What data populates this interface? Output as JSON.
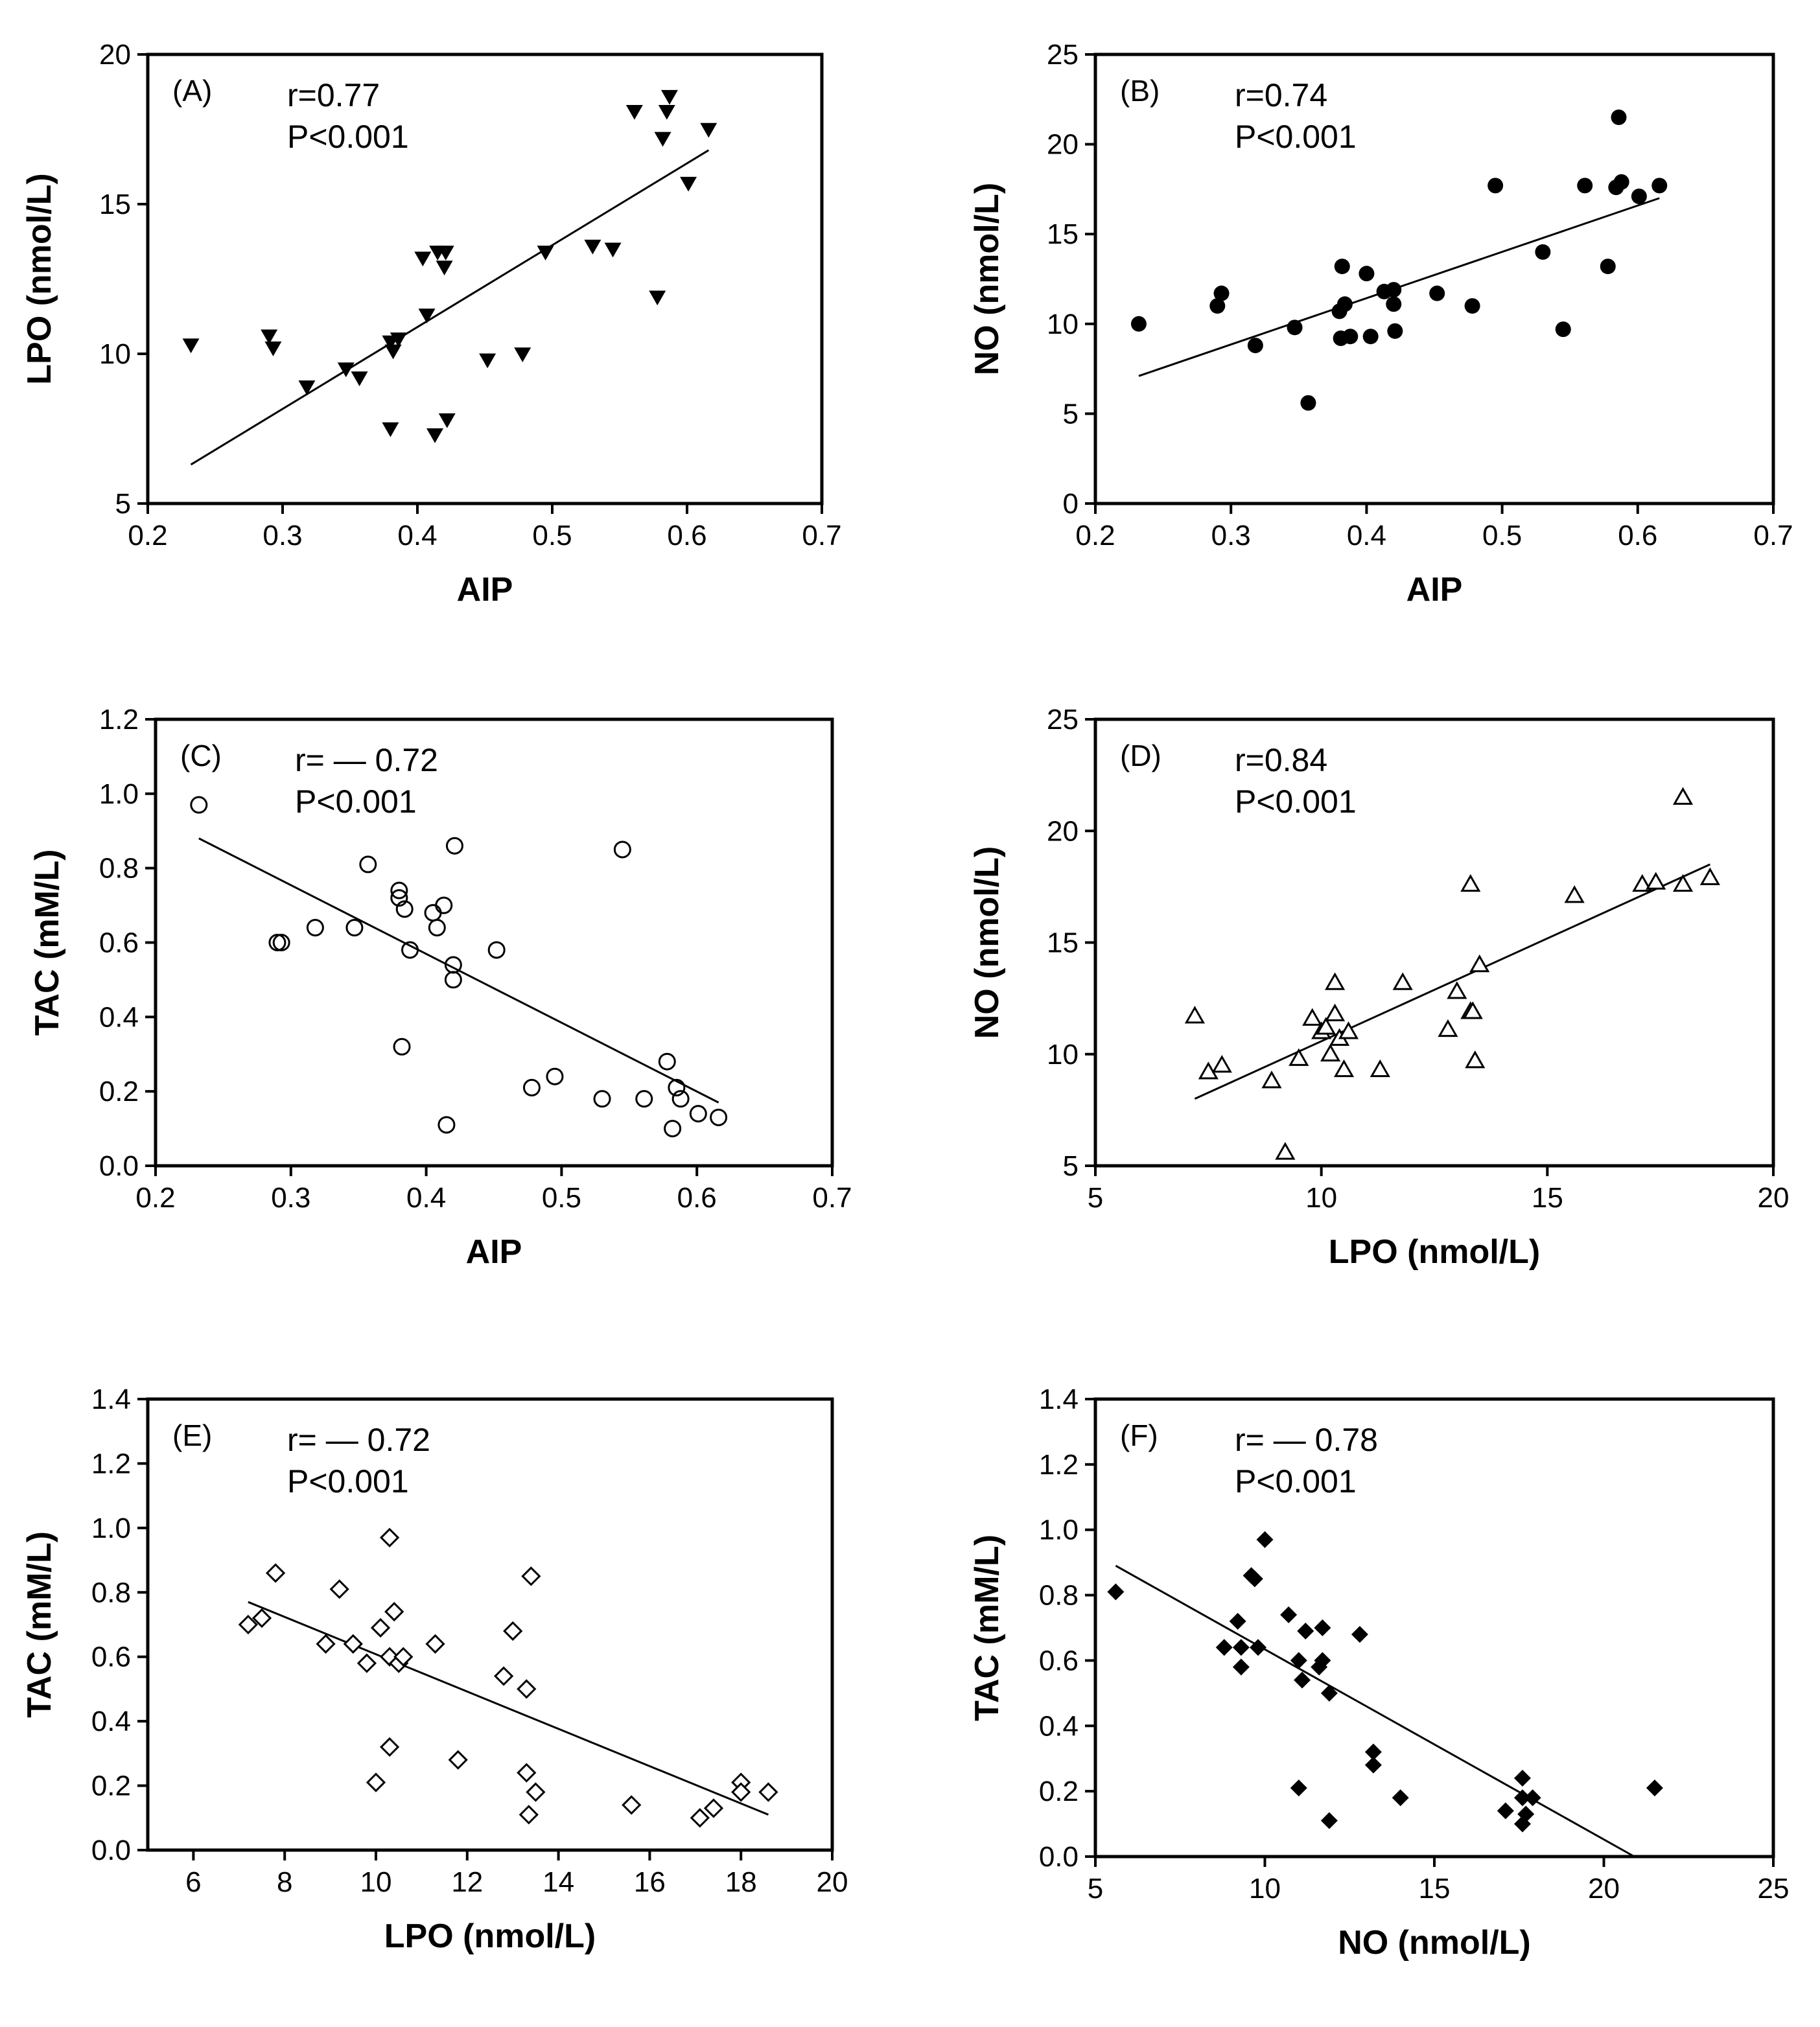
{
  "chart_data": [
    {
      "id": "A",
      "type": "scatter",
      "panel_label": "(A)",
      "annotations": [
        "r=0.77",
        "P<0.001"
      ],
      "xlabel": "AIP",
      "ylabel": "LPO (nmol/L)",
      "xlim": [
        0.2,
        0.7
      ],
      "ylim": [
        5,
        20
      ],
      "xticks": [
        0.2,
        0.3,
        0.4,
        0.5,
        0.6,
        0.7
      ],
      "xtick_labels": [
        "0.2",
        "0.3",
        "0.4",
        "0.5",
        "0.6",
        "0.7"
      ],
      "yticks": [
        5,
        10,
        15,
        20
      ],
      "ytick_labels": [
        "5",
        "10",
        "15",
        "20"
      ],
      "marker": "triangle-down-filled",
      "points": [
        [
          0.232,
          10.3
        ],
        [
          0.29,
          10.6
        ],
        [
          0.293,
          10.2
        ],
        [
          0.318,
          8.9
        ],
        [
          0.347,
          9.5
        ],
        [
          0.357,
          9.2
        ],
        [
          0.38,
          7.5
        ],
        [
          0.38,
          10.4
        ],
        [
          0.382,
          10.1
        ],
        [
          0.386,
          10.5
        ],
        [
          0.404,
          13.2
        ],
        [
          0.407,
          11.3
        ],
        [
          0.413,
          7.3
        ],
        [
          0.415,
          13.4
        ],
        [
          0.421,
          13.4
        ],
        [
          0.42,
          12.9
        ],
        [
          0.422,
          7.8
        ],
        [
          0.452,
          9.8
        ],
        [
          0.478,
          10.0
        ],
        [
          0.495,
          13.4
        ],
        [
          0.53,
          13.6
        ],
        [
          0.545,
          13.5
        ],
        [
          0.561,
          18.1
        ],
        [
          0.578,
          11.9
        ],
        [
          0.582,
          17.2
        ],
        [
          0.585,
          18.1
        ],
        [
          0.587,
          18.6
        ],
        [
          0.601,
          15.7
        ],
        [
          0.616,
          17.5
        ]
      ],
      "fit_line": [
        [
          0.232,
          6.3
        ],
        [
          0.616,
          16.8
        ]
      ]
    },
    {
      "id": "B",
      "type": "scatter",
      "panel_label": "(B)",
      "annotations": [
        "r=0.74",
        "P<0.001"
      ],
      "xlabel": "AIP",
      "ylabel": "NO (nmol/L)",
      "xlim": [
        0.2,
        0.7
      ],
      "ylim": [
        0,
        25
      ],
      "xticks": [
        0.2,
        0.3,
        0.4,
        0.5,
        0.6,
        0.7
      ],
      "xtick_labels": [
        "0.2",
        "0.3",
        "0.4",
        "0.5",
        "0.6",
        "0.7"
      ],
      "yticks": [
        0,
        5,
        10,
        15,
        20,
        25
      ],
      "ytick_labels": [
        "0",
        "5",
        "10",
        "15",
        "20",
        "25"
      ],
      "marker": "circle-filled",
      "points": [
        [
          0.232,
          10.0
        ],
        [
          0.29,
          11.0
        ],
        [
          0.293,
          11.7
        ],
        [
          0.318,
          8.8
        ],
        [
          0.347,
          9.8
        ],
        [
          0.357,
          5.6
        ],
        [
          0.38,
          10.7
        ],
        [
          0.381,
          9.2
        ],
        [
          0.382,
          13.2
        ],
        [
          0.384,
          11.1
        ],
        [
          0.388,
          9.3
        ],
        [
          0.4,
          12.8
        ],
        [
          0.403,
          9.3
        ],
        [
          0.413,
          11.8
        ],
        [
          0.42,
          11.9
        ],
        [
          0.42,
          11.1
        ],
        [
          0.421,
          9.6
        ],
        [
          0.452,
          11.7
        ],
        [
          0.478,
          11.0
        ],
        [
          0.495,
          17.7
        ],
        [
          0.53,
          14.0
        ],
        [
          0.545,
          9.7
        ],
        [
          0.561,
          17.7
        ],
        [
          0.578,
          13.2
        ],
        [
          0.584,
          17.6
        ],
        [
          0.586,
          21.5
        ],
        [
          0.588,
          17.9
        ],
        [
          0.601,
          17.1
        ],
        [
          0.616,
          17.7
        ]
      ],
      "fit_line": [
        [
          0.232,
          7.1
        ],
        [
          0.616,
          17.0
        ]
      ]
    },
    {
      "id": "C",
      "type": "scatter",
      "panel_label": "(C)",
      "annotations": [
        "r= — 0.72",
        "P<0.001"
      ],
      "xlabel": "AIP",
      "ylabel": "TAC (mM/L)",
      "xlim": [
        0.2,
        0.7
      ],
      "ylim": [
        0.0,
        1.2
      ],
      "xticks": [
        0.2,
        0.3,
        0.4,
        0.5,
        0.6,
        0.7
      ],
      "xtick_labels": [
        "0.2",
        "0.3",
        "0.4",
        "0.5",
        "0.6",
        "0.7"
      ],
      "yticks": [
        0.0,
        0.2,
        0.4,
        0.6,
        0.8,
        1.0,
        1.2
      ],
      "ytick_labels": [
        "0.0",
        "0.2",
        "0.4",
        "0.6",
        "0.8",
        "1.0",
        "1.2"
      ],
      "marker": "circle-open",
      "points": [
        [
          0.232,
          0.97
        ],
        [
          0.29,
          0.6
        ],
        [
          0.293,
          0.6
        ],
        [
          0.318,
          0.64
        ],
        [
          0.347,
          0.64
        ],
        [
          0.357,
          0.81
        ],
        [
          0.38,
          0.74
        ],
        [
          0.38,
          0.72
        ],
        [
          0.382,
          0.32
        ],
        [
          0.384,
          0.69
        ],
        [
          0.388,
          0.58
        ],
        [
          0.405,
          0.68
        ],
        [
          0.408,
          0.64
        ],
        [
          0.413,
          0.7
        ],
        [
          0.415,
          0.11
        ],
        [
          0.42,
          0.54
        ],
        [
          0.42,
          0.5
        ],
        [
          0.421,
          0.86
        ],
        [
          0.452,
          0.58
        ],
        [
          0.478,
          0.21
        ],
        [
          0.495,
          0.24
        ],
        [
          0.53,
          0.18
        ],
        [
          0.545,
          0.85
        ],
        [
          0.561,
          0.18
        ],
        [
          0.578,
          0.28
        ],
        [
          0.582,
          0.1
        ],
        [
          0.585,
          0.21
        ],
        [
          0.588,
          0.18
        ],
        [
          0.601,
          0.14
        ],
        [
          0.616,
          0.13
        ]
      ],
      "fit_line": [
        [
          0.232,
          0.88
        ],
        [
          0.616,
          0.17
        ]
      ]
    },
    {
      "id": "D",
      "type": "scatter",
      "panel_label": "(D)",
      "annotations": [
        "r=0.84",
        "P<0.001"
      ],
      "xlabel": "LPO (nmol/L)",
      "ylabel": "NO (nmol/L)",
      "xlim": [
        5,
        20
      ],
      "ylim": [
        5,
        25
      ],
      "xticks": [
        5,
        10,
        15,
        20
      ],
      "xtick_labels": [
        "5",
        "10",
        "15",
        "20"
      ],
      "yticks": [
        5,
        10,
        15,
        20,
        25
      ],
      "ytick_labels": [
        "5",
        "10",
        "15",
        "20",
        "25"
      ],
      "marker": "triangle-up-open",
      "points": [
        [
          7.2,
          11.7
        ],
        [
          7.5,
          9.2
        ],
        [
          7.8,
          9.5
        ],
        [
          8.9,
          8.8
        ],
        [
          9.2,
          5.6
        ],
        [
          9.5,
          9.8
        ],
        [
          9.8,
          11.6
        ],
        [
          10.0,
          11.0
        ],
        [
          10.1,
          11.2
        ],
        [
          10.2,
          10.0
        ],
        [
          10.3,
          13.2
        ],
        [
          10.3,
          11.8
        ],
        [
          10.4,
          10.7
        ],
        [
          10.5,
          9.3
        ],
        [
          10.6,
          11.0
        ],
        [
          11.3,
          9.3
        ],
        [
          11.8,
          13.2
        ],
        [
          12.8,
          11.1
        ],
        [
          13.0,
          12.8
        ],
        [
          13.3,
          11.9
        ],
        [
          13.3,
          17.6
        ],
        [
          13.35,
          11.9
        ],
        [
          13.4,
          9.7
        ],
        [
          13.5,
          14.0
        ],
        [
          15.6,
          17.1
        ],
        [
          17.1,
          17.6
        ],
        [
          17.4,
          17.7
        ],
        [
          18.0,
          17.6
        ],
        [
          18.0,
          21.5
        ],
        [
          18.6,
          17.9
        ]
      ],
      "fit_line": [
        [
          7.2,
          8.0
        ],
        [
          18.6,
          18.5
        ]
      ]
    },
    {
      "id": "E",
      "type": "scatter",
      "panel_label": "(E)",
      "annotations": [
        "r= — 0.72",
        "P<0.001"
      ],
      "xlabel": "LPO (nmol/L)",
      "ylabel": "TAC (mM/L)",
      "xlim": [
        5,
        20
      ],
      "ylim": [
        0.0,
        1.4
      ],
      "xticks": [
        6,
        8,
        10,
        12,
        14,
        16,
        18,
        20
      ],
      "xtick_labels": [
        "6",
        "8",
        "10",
        "12",
        "14",
        "16",
        "18",
        "20"
      ],
      "yticks": [
        0.0,
        0.2,
        0.4,
        0.6,
        0.8,
        1.0,
        1.2,
        1.4
      ],
      "ytick_labels": [
        "0.0",
        "0.2",
        "0.4",
        "0.6",
        "0.8",
        "1.0",
        "1.2",
        "1.4"
      ],
      "marker": "diamond-open",
      "points": [
        [
          7.2,
          0.7
        ],
        [
          7.5,
          0.72
        ],
        [
          7.8,
          0.86
        ],
        [
          8.9,
          0.64
        ],
        [
          9.2,
          0.81
        ],
        [
          9.5,
          0.64
        ],
        [
          9.8,
          0.58
        ],
        [
          10.0,
          0.21
        ],
        [
          10.1,
          0.69
        ],
        [
          10.3,
          0.6
        ],
        [
          10.3,
          0.97
        ],
        [
          10.4,
          0.74
        ],
        [
          10.3,
          0.32
        ],
        [
          10.5,
          0.58
        ],
        [
          10.6,
          0.6
        ],
        [
          11.3,
          0.64
        ],
        [
          11.8,
          0.28
        ],
        [
          12.8,
          0.54
        ],
        [
          13.0,
          0.68
        ],
        [
          13.3,
          0.5
        ],
        [
          13.3,
          0.24
        ],
        [
          13.4,
          0.85
        ],
        [
          13.35,
          0.11
        ],
        [
          13.5,
          0.18
        ],
        [
          15.6,
          0.14
        ],
        [
          17.1,
          0.1
        ],
        [
          17.4,
          0.13
        ],
        [
          18.0,
          0.21
        ],
        [
          18.0,
          0.18
        ],
        [
          18.6,
          0.18
        ]
      ],
      "fit_line": [
        [
          7.2,
          0.77
        ],
        [
          18.6,
          0.11
        ]
      ]
    },
    {
      "id": "F",
      "type": "scatter",
      "panel_label": "(F)",
      "annotations": [
        "r= — 0.78",
        "P<0.001"
      ],
      "xlabel": "NO (nmol/L)",
      "ylabel": "TAC (mM/L)",
      "xlim": [
        5,
        25
      ],
      "ylim": [
        0.0,
        1.4
      ],
      "xticks": [
        5,
        10,
        15,
        20,
        25
      ],
      "xtick_labels": [
        "5",
        "10",
        "15",
        "20",
        "25"
      ],
      "yticks": [
        0.0,
        0.2,
        0.4,
        0.6,
        0.8,
        1.0,
        1.2,
        1.4
      ],
      "ytick_labels": [
        "0.0",
        "0.2",
        "0.4",
        "0.6",
        "0.8",
        "1.0",
        "1.2",
        "1.4"
      ],
      "marker": "diamond-filled",
      "points": [
        [
          5.6,
          0.81
        ],
        [
          8.8,
          0.64
        ],
        [
          9.2,
          0.72
        ],
        [
          9.3,
          0.58
        ],
        [
          9.3,
          0.64
        ],
        [
          9.6,
          0.86
        ],
        [
          9.7,
          0.85
        ],
        [
          9.8,
          0.64
        ],
        [
          10.0,
          0.97
        ],
        [
          10.7,
          0.74
        ],
        [
          11.0,
          0.21
        ],
        [
          11.0,
          0.6
        ],
        [
          11.1,
          0.54
        ],
        [
          11.2,
          0.69
        ],
        [
          11.6,
          0.58
        ],
        [
          11.7,
          0.7
        ],
        [
          11.7,
          0.6
        ],
        [
          11.9,
          0.11
        ],
        [
          11.9,
          0.5
        ],
        [
          12.8,
          0.68
        ],
        [
          13.2,
          0.32
        ],
        [
          13.2,
          0.28
        ],
        [
          14.0,
          0.18
        ],
        [
          17.1,
          0.14
        ],
        [
          17.6,
          0.18
        ],
        [
          17.6,
          0.24
        ],
        [
          17.6,
          0.1
        ],
        [
          17.7,
          0.13
        ],
        [
          17.9,
          0.18
        ],
        [
          21.5,
          0.21
        ]
      ],
      "fit_line": [
        [
          5.6,
          0.89
        ],
        [
          20.9,
          0.0
        ]
      ]
    }
  ]
}
